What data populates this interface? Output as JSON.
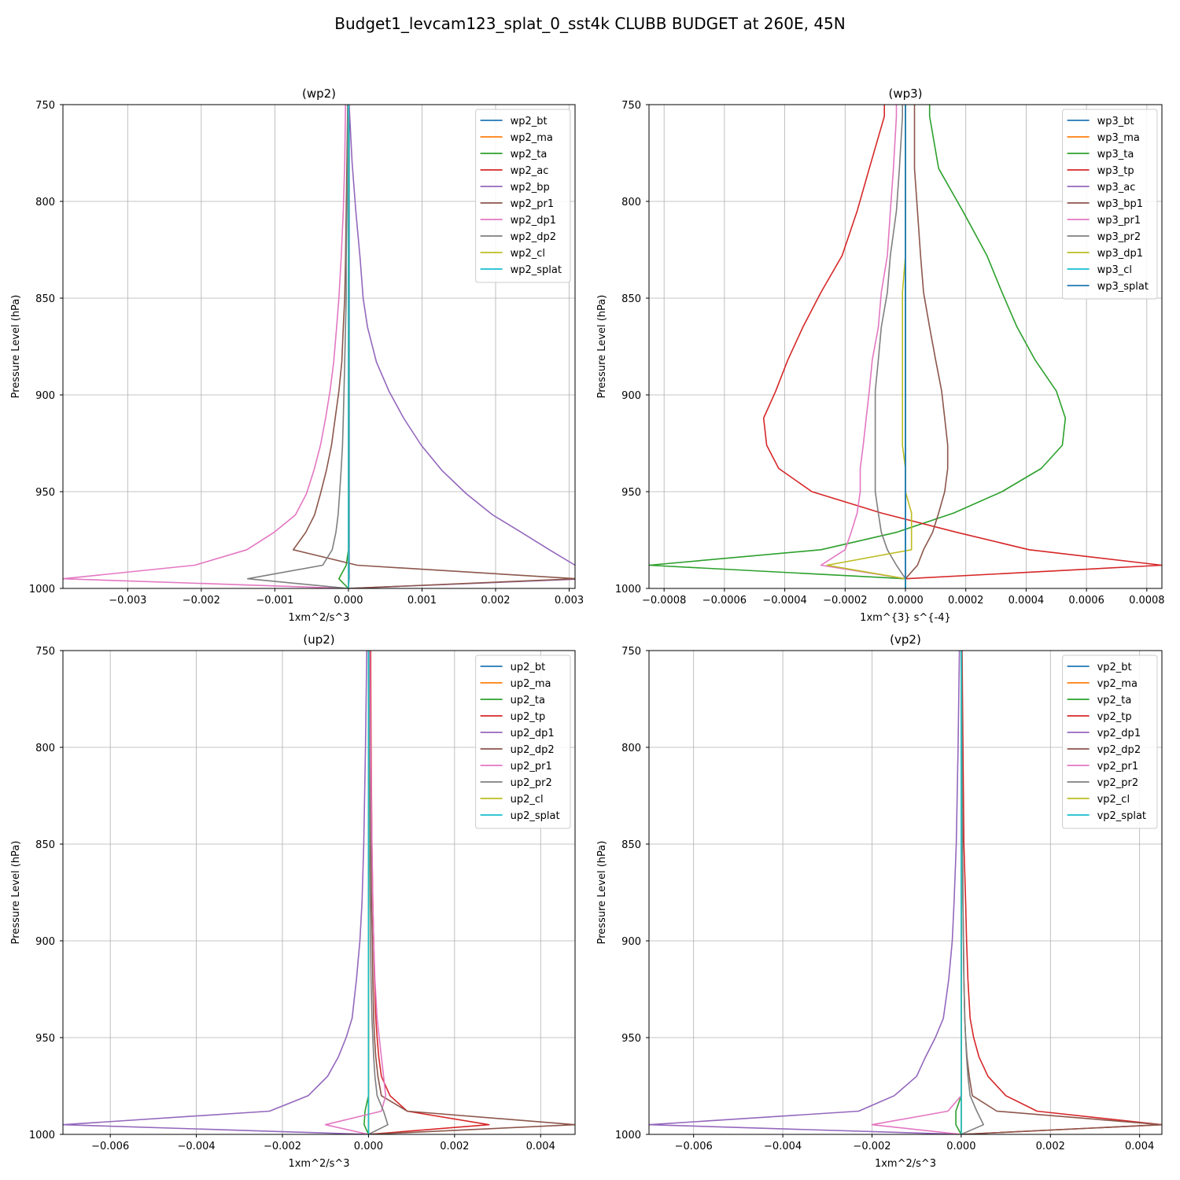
{
  "figure_title": "Budget1_levcam123_splat_0_sst4k CLUBB BUDGET at 260E, 45N",
  "colors": [
    "#1f77b4",
    "#ff7f0e",
    "#2ca02c",
    "#d62728",
    "#9467bd",
    "#8c564b",
    "#e377c2",
    "#7f7f7f",
    "#bcbd22",
    "#17becf"
  ],
  "chart_data": [
    {
      "type": "line",
      "title": "(wp2)",
      "xlabel": "1xm^2/s^3",
      "ylabel": "Pressure Level (hPa)",
      "xlim": [
        -0.00388,
        0.00308
      ],
      "ylim": [
        1000,
        750
      ],
      "xticks": [
        -0.003,
        -0.002,
        -0.001,
        0.0,
        0.001,
        0.002,
        0.003
      ],
      "xtick_labels": [
        "−0.003",
        "−0.002",
        "−0.001",
        "0.000",
        "0.001",
        "0.002",
        "0.003"
      ],
      "yticks": [
        750,
        800,
        850,
        900,
        950,
        1000
      ],
      "ytick_labels": [
        "750",
        "800",
        "850",
        "900",
        "950",
        "1000"
      ],
      "grid": true,
      "legend": "upper right",
      "levels": [
        750,
        780,
        805,
        830,
        850,
        865,
        883,
        898,
        912,
        926,
        939,
        951,
        962,
        971,
        980,
        988,
        995,
        1000
      ],
      "series": [
        {
          "name": "wp2_bt",
          "values": [
            1e-05,
            1e-05,
            1e-05,
            1e-05,
            1e-05,
            1e-05,
            1e-05,
            1e-05,
            1e-05,
            1e-05,
            1e-05,
            1e-05,
            1e-05,
            1e-05,
            1e-05,
            1e-05,
            1e-05,
            0
          ]
        },
        {
          "name": "wp2_ma",
          "values": [
            0,
            0,
            0,
            0,
            0,
            0,
            0,
            0,
            0,
            0,
            0,
            0,
            0,
            0,
            0,
            0,
            0,
            0
          ]
        },
        {
          "name": "wp2_ta",
          "values": [
            0,
            0,
            0,
            0,
            0,
            0,
            0,
            0,
            0,
            0,
            0,
            0,
            0,
            0,
            0,
            -3e-05,
            -0.00013,
            0
          ]
        },
        {
          "name": "wp2_ac",
          "values": [
            0,
            0,
            0,
            0,
            0,
            0,
            0,
            0,
            0,
            0,
            0,
            0,
            0,
            0,
            0,
            0,
            0,
            0
          ]
        },
        {
          "name": "wp2_bp",
          "values": [
            1e-05,
            5e-05,
            0.0001,
            0.00016,
            0.0002,
            0.00026,
            0.00038,
            0.00055,
            0.00075,
            0.00099,
            0.00127,
            0.0016,
            0.00196,
            0.00235,
            0.00273,
            0.00308,
            0.00325,
            0
          ]
        },
        {
          "name": "wp2_pr1",
          "values": [
            -1e-05,
            -2e-05,
            -3e-05,
            -4e-05,
            -5e-05,
            -7e-05,
            -9e-05,
            -0.00013,
            -0.00018,
            -0.00023,
            -0.0003,
            -0.00038,
            -0.00046,
            -0.00058,
            -0.00075,
            0.00012,
            0.0031,
            0
          ]
        },
        {
          "name": "wp2_dp1",
          "values": [
            -4e-05,
            -5e-05,
            -7e-05,
            -0.0001,
            -0.00013,
            -0.00016,
            -0.0002,
            -0.00025,
            -0.00031,
            -0.00038,
            -0.00047,
            -0.00057,
            -0.00072,
            -0.00101,
            -0.00138,
            -0.00209,
            -0.00388,
            0
          ]
        },
        {
          "name": "wp2_dp2",
          "values": [
            -1e-05,
            -1e-05,
            -2e-05,
            -3e-05,
            -3e-05,
            -4e-05,
            -5e-05,
            -6e-05,
            -7e-05,
            -8e-05,
            -0.0001,
            -0.00012,
            -0.00014,
            -0.00017,
            -0.00022,
            -0.00035,
            -0.00137,
            0
          ]
        },
        {
          "name": "wp2_cl",
          "values": [
            0,
            0,
            0,
            0,
            0,
            0,
            0,
            0,
            0,
            0,
            0,
            0,
            0,
            0,
            0,
            0,
            0,
            0
          ]
        },
        {
          "name": "wp2_splat",
          "values": [
            0,
            0,
            0,
            0,
            0,
            0,
            0,
            0,
            0,
            0,
            0,
            0,
            0,
            0,
            0,
            0,
            0,
            0
          ]
        }
      ]
    },
    {
      "type": "line",
      "title": "(wp3)",
      "xlabel": "1xm^{3} s^{-4}",
      "ylabel": "Pressure Level (hPa)",
      "xlim": [
        -0.00085,
        0.00085
      ],
      "ylim": [
        1000,
        750
      ],
      "xticks": [
        -0.0008,
        -0.0006,
        -0.0004,
        -0.0002,
        0.0,
        0.0002,
        0.0004,
        0.0006,
        0.0008
      ],
      "xtick_labels": [
        "−0.0008",
        "−0.0006",
        "−0.0004",
        "−0.0002",
        "0.0000",
        "0.0002",
        "0.0004",
        "0.0006",
        "0.0008"
      ],
      "yticks": [
        750,
        800,
        850,
        900,
        950,
        1000
      ],
      "ytick_labels": [
        "750",
        "800",
        "850",
        "900",
        "950",
        "1000"
      ],
      "grid": true,
      "legend": "upper right",
      "levels": [
        750,
        756,
        783,
        805,
        828,
        847,
        865,
        882,
        898,
        912,
        926,
        938,
        950,
        961,
        971,
        980,
        988,
        995,
        1000
      ],
      "series": [
        {
          "name": "wp3_bt",
          "values": [
            0,
            0,
            0,
            0,
            0,
            0,
            0,
            0,
            0,
            0,
            0,
            0,
            0,
            0,
            0,
            0,
            0,
            0,
            0
          ]
        },
        {
          "name": "wp3_ma",
          "values": [
            0,
            0,
            0,
            0,
            0,
            0,
            0,
            0,
            0,
            0,
            0,
            0,
            0,
            0,
            0,
            0,
            0,
            0,
            0
          ]
        },
        {
          "name": "wp3_ta",
          "values": [
            8e-05,
            8e-05,
            0.00011,
            0.00019,
            0.00027,
            0.00032,
            0.00037,
            0.00043,
            0.0005,
            0.00053,
            0.00052,
            0.00045,
            0.00032,
            0.00016,
            -3e-05,
            -0.00028,
            -0.00085,
            0,
            0
          ]
        },
        {
          "name": "wp3_tp",
          "values": [
            -7e-05,
            -7e-05,
            -0.00012,
            -0.00016,
            -0.00021,
            -0.00028,
            -0.00034,
            -0.00039,
            -0.00043,
            -0.00047,
            -0.00046,
            -0.00042,
            -0.00031,
            -8e-05,
            0.00017,
            0.00041,
            0.00085,
            0,
            0
          ]
        },
        {
          "name": "wp3_ac",
          "values": [
            0,
            0,
            0,
            0,
            0,
            0,
            0,
            0,
            0,
            0,
            0,
            0,
            0,
            0,
            0,
            0,
            0,
            0,
            0
          ]
        },
        {
          "name": "wp3_bp1",
          "values": [
            3e-05,
            3e-05,
            3e-05,
            4e-05,
            5e-05,
            6e-05,
            8e-05,
            0.0001,
            0.00012,
            0.00013,
            0.00014,
            0.00014,
            0.00013,
            0.00011,
            9e-05,
            6e-05,
            4e-05,
            0,
            0
          ]
        },
        {
          "name": "wp3_pr1",
          "values": [
            -3e-05,
            -3e-05,
            -4e-05,
            -5e-05,
            -6e-05,
            -8e-05,
            -9e-05,
            -0.00011,
            -0.00012,
            -0.00013,
            -0.00014,
            -0.00015,
            -0.00015,
            -0.00016,
            -0.00018,
            -0.0002,
            -0.00028,
            0,
            0
          ]
        },
        {
          "name": "wp3_pr2",
          "values": [
            -1e-05,
            -1e-05,
            -2e-05,
            -3e-05,
            -5e-05,
            -6e-05,
            -8e-05,
            -9e-05,
            -0.0001,
            -0.0001,
            -0.0001,
            -0.0001,
            -0.0001,
            -9e-05,
            -8e-05,
            -6e-05,
            -3e-05,
            0,
            0
          ]
        },
        {
          "name": "wp3_dp1",
          "values": [
            0,
            0,
            0,
            0,
            0,
            -1e-05,
            -1e-05,
            -1e-05,
            -1e-05,
            -1e-05,
            -1e-05,
            0,
            0,
            2e-05,
            2e-05,
            2e-05,
            -0.00026,
            0,
            0
          ]
        },
        {
          "name": "wp3_cl",
          "values": [
            0,
            0,
            0,
            0,
            0,
            0,
            0,
            0,
            0,
            0,
            0,
            0,
            0,
            0,
            0,
            0,
            0,
            0,
            0
          ]
        },
        {
          "name": "wp3_splat",
          "values": [
            0,
            0,
            0,
            0,
            0,
            0,
            0,
            0,
            0,
            0,
            0,
            0,
            0,
            0,
            0,
            0,
            0,
            0,
            0
          ]
        }
      ]
    },
    {
      "type": "line",
      "title": "(up2)",
      "xlabel": "1xm^2/s^3",
      "ylabel": "Pressure Level (hPa)",
      "xlim": [
        -0.0071,
        0.0048
      ],
      "ylim": [
        1000,
        750
      ],
      "xticks": [
        -0.006,
        -0.004,
        -0.002,
        0.0,
        0.002,
        0.004
      ],
      "xtick_labels": [
        "−0.006",
        "−0.004",
        "−0.002",
        "0.000",
        "0.002",
        "0.004"
      ],
      "yticks": [
        750,
        800,
        850,
        900,
        950,
        1000
      ],
      "ytick_labels": [
        "750",
        "800",
        "850",
        "900",
        "950",
        "1000"
      ],
      "grid": true,
      "legend": "upper right",
      "levels": [
        750,
        800,
        850,
        880,
        900,
        920,
        940,
        950,
        960,
        970,
        980,
        988,
        995,
        1000
      ],
      "series": [
        {
          "name": "up2_bt",
          "values": [
            0,
            0,
            0,
            0,
            0,
            0,
            0,
            0,
            0,
            0,
            0,
            0,
            0,
            0
          ]
        },
        {
          "name": "up2_ma",
          "values": [
            0,
            0,
            0,
            0,
            0,
            0,
            0,
            0,
            0,
            0,
            0,
            0,
            0,
            0
          ]
        },
        {
          "name": "up2_ta",
          "values": [
            0,
            0,
            0,
            0,
            0,
            0,
            0,
            0,
            0,
            0,
            0,
            -8e-05,
            -0.0001,
            0
          ]
        },
        {
          "name": "up2_tp",
          "values": [
            5e-05,
            6e-05,
            8e-05,
            0.0001,
            0.00012,
            0.00014,
            0.00017,
            0.0002,
            0.00024,
            0.0003,
            0.0005,
            0.0009,
            0.0028,
            0
          ]
        },
        {
          "name": "up2_dp1",
          "values": [
            -4e-05,
            -7e-05,
            -0.00011,
            -0.00015,
            -0.0002,
            -0.00028,
            -0.00038,
            -0.00052,
            -0.0007,
            -0.00095,
            -0.0014,
            -0.0023,
            -0.0071,
            0
          ]
        },
        {
          "name": "up2_dp2",
          "values": [
            2e-05,
            4e-05,
            6e-05,
            7e-05,
            9e-05,
            0.0001,
            0.00012,
            0.00014,
            0.00017,
            0.00022,
            0.0003,
            0.0009,
            0.0048,
            0
          ]
        },
        {
          "name": "up2_pr1",
          "values": [
            3e-05,
            5e-05,
            8e-05,
            0.0001,
            0.00012,
            0.00015,
            0.0002,
            0.00025,
            0.0003,
            0.00035,
            0.0004,
            0.0003,
            -0.001,
            0
          ]
        },
        {
          "name": "up2_pr2",
          "values": [
            1e-05,
            2e-05,
            3e-05,
            4e-05,
            5e-05,
            6e-05,
            8e-05,
            0.0001,
            0.00012,
            0.00015,
            0.0002,
            0.00035,
            0.00045,
            0
          ]
        },
        {
          "name": "up2_cl",
          "values": [
            0,
            0,
            0,
            0,
            0,
            0,
            0,
            0,
            0,
            0,
            0,
            0,
            0,
            0
          ]
        },
        {
          "name": "up2_splat",
          "values": [
            0,
            0,
            0,
            0,
            0,
            0,
            0,
            0,
            0,
            0,
            0,
            0,
            0,
            0
          ]
        }
      ]
    },
    {
      "type": "line",
      "title": "(vp2)",
      "xlabel": "1xm^2/s^3",
      "ylabel": "Pressure Level (hPa)",
      "xlim": [
        -0.007,
        0.0045
      ],
      "ylim": [
        1000,
        750
      ],
      "xticks": [
        -0.006,
        -0.004,
        -0.002,
        0.0,
        0.002,
        0.004
      ],
      "xtick_labels": [
        "−0.006",
        "−0.004",
        "−0.002",
        "0.000",
        "0.002",
        "0.004"
      ],
      "yticks": [
        750,
        800,
        850,
        900,
        950,
        1000
      ],
      "ytick_labels": [
        "750",
        "800",
        "850",
        "900",
        "950",
        "1000"
      ],
      "grid": true,
      "legend": "upper right",
      "levels": [
        750,
        800,
        850,
        880,
        900,
        920,
        940,
        950,
        960,
        970,
        980,
        988,
        995,
        1000
      ],
      "series": [
        {
          "name": "vp2_bt",
          "values": [
            0,
            0,
            0,
            0,
            0,
            0,
            0,
            0,
            0,
            0,
            0,
            0,
            0,
            0
          ]
        },
        {
          "name": "vp2_ma",
          "values": [
            0,
            0,
            0,
            0,
            0,
            0,
            0,
            0,
            0,
            0,
            0,
            0,
            0,
            0
          ]
        },
        {
          "name": "vp2_ta",
          "values": [
            0,
            0,
            0,
            0,
            0,
            0,
            0,
            0,
            0,
            0,
            0,
            -0.00012,
            -0.00012,
            0
          ]
        },
        {
          "name": "vp2_tp",
          "values": [
            2e-05,
            4e-05,
            6e-05,
            0.0001,
            0.00012,
            0.00015,
            0.0002,
            0.00028,
            0.0004,
            0.0006,
            0.001,
            0.0017,
            0.0045,
            0
          ]
        },
        {
          "name": "vp2_dp1",
          "values": [
            -4e-05,
            -7e-05,
            -0.00011,
            -0.00016,
            -0.0002,
            -0.00028,
            -0.0004,
            -0.00058,
            -0.0008,
            -0.001,
            -0.0015,
            -0.0023,
            -0.007,
            0
          ]
        },
        {
          "name": "vp2_dp2",
          "values": [
            1e-05,
            2e-05,
            3e-05,
            4e-05,
            5e-05,
            6e-05,
            8e-05,
            0.0001,
            0.00013,
            0.00018,
            0.00025,
            0.0008,
            0.0045,
            0
          ]
        },
        {
          "name": "vp2_pr1",
          "values": [
            0,
            0,
            0,
            0,
            0,
            0,
            0,
            0,
            0,
            0,
            0,
            -0.0003,
            -0.002,
            0
          ]
        },
        {
          "name": "vp2_pr2",
          "values": [
            1e-05,
            2e-05,
            3e-05,
            4e-05,
            5e-05,
            6e-05,
            8e-05,
            0.0001,
            0.00012,
            0.00015,
            0.0002,
            0.00035,
            0.0005,
            0
          ]
        },
        {
          "name": "vp2_cl",
          "values": [
            0,
            0,
            0,
            0,
            0,
            0,
            0,
            0,
            0,
            0,
            0,
            0,
            0,
            0
          ]
        },
        {
          "name": "vp2_splat",
          "values": [
            0,
            0,
            0,
            0,
            0,
            0,
            0,
            0,
            0,
            0,
            0,
            0,
            0,
            0
          ]
        }
      ]
    }
  ]
}
